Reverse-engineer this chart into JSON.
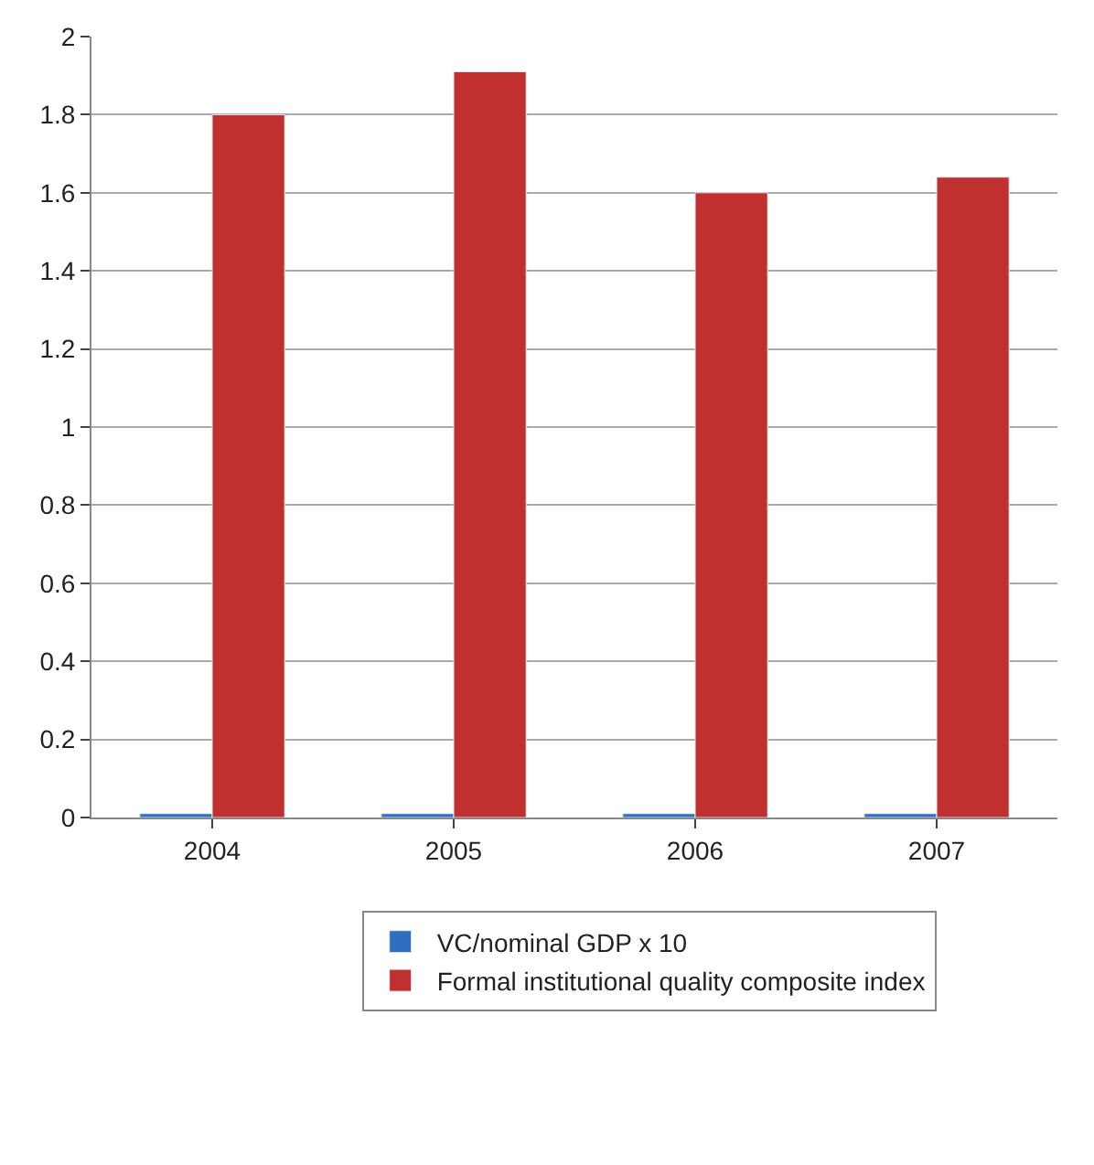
{
  "chart_data": {
    "type": "bar",
    "categories": [
      "2004",
      "2005",
      "2006",
      "2007"
    ],
    "series": [
      {
        "name": "VC/nominal GDP x 10",
        "color": "#2e6fbf",
        "values": [
          0.01,
          0.01,
          0.01,
          0.01
        ]
      },
      {
        "name": "Formal institutional quality composite index",
        "color": "#c0302e",
        "values": [
          1.8,
          1.91,
          1.6,
          1.64
        ]
      }
    ],
    "ylim": [
      0,
      2
    ],
    "yticks": [
      0,
      0.2,
      0.4,
      0.6,
      0.8,
      1,
      1.2,
      1.4,
      1.6,
      1.8,
      2
    ],
    "grid": "y",
    "legend": "bottom"
  }
}
